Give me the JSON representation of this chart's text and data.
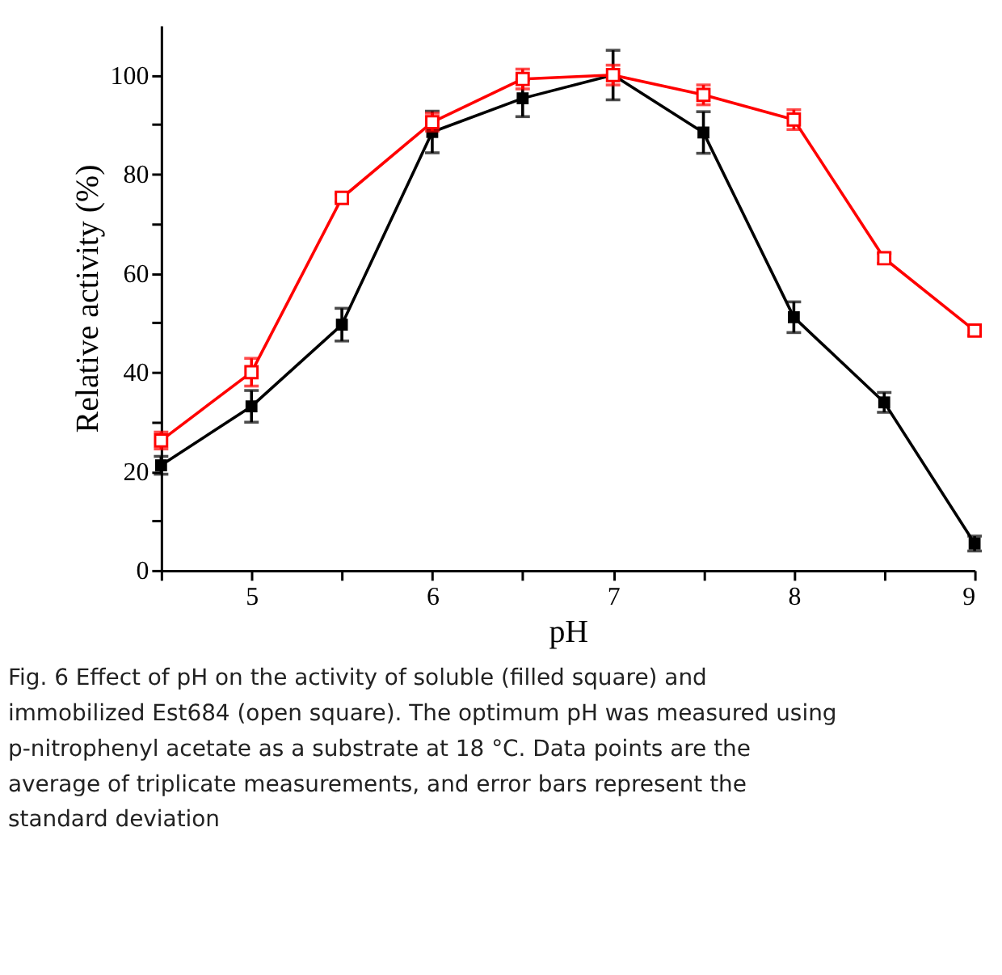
{
  "chart_data": {
    "type": "line",
    "xlabel": "pH",
    "ylabel": "Relative activity (%)",
    "x": [
      4.5,
      5,
      5.5,
      6,
      6.5,
      7,
      7.5,
      8,
      8.5,
      9
    ],
    "series": [
      {
        "color": "#000000",
        "marker": "square",
        "values": [
          21.2,
          33.1,
          49.6,
          88.5,
          95.3,
          100,
          88.4,
          51.1,
          33.9,
          5.4
        ],
        "errors": [
          1.8,
          3.2,
          3.3,
          4.2,
          3.7,
          5,
          4.2,
          3.1,
          2,
          1.5
        ]
      },
      {
        "color": "#ff0000",
        "marker": "square",
        "values": [
          26.2,
          40,
          75.2,
          90.5,
          99.2,
          100,
          96,
          91,
          63,
          48.4
        ],
        "errors": [
          1.7,
          2.8,
          0.8,
          1.8,
          2,
          2,
          2,
          2,
          1,
          1
        ]
      }
    ],
    "xlim": [
      4.5,
      9
    ],
    "xticks": [
      {
        "value": 4.5,
        "label": null
      },
      5,
      {
        "value": 5.5,
        "label": null
      },
      6,
      {
        "value": 6.5,
        "label": null
      },
      7,
      {
        "value": 7.5,
        "label": null
      },
      8,
      {
        "value": 8.5,
        "label": null
      },
      9
    ],
    "ylim": [
      0,
      110
    ],
    "yticks": [
      0,
      {
        "value": 10,
        "label": null
      },
      20,
      {
        "value": 30,
        "label": null
      },
      40,
      {
        "value": 50,
        "label": null
      },
      60,
      {
        "value": 70,
        "label": null
      },
      80,
      {
        "value": 90,
        "label": null
      },
      100
    ],
    "grid": false,
    "annotations": [
      "Fig. 6  Effect of pH on the activity of soluble (filled square) and immobilized Est684 (open square). The optimum pH was measured using p-nitrophenyl acetate as a substrate at 18 °C. Data points are the average of triplicate measurements, and error bars represent the standard deviation"
    ]
  }
}
